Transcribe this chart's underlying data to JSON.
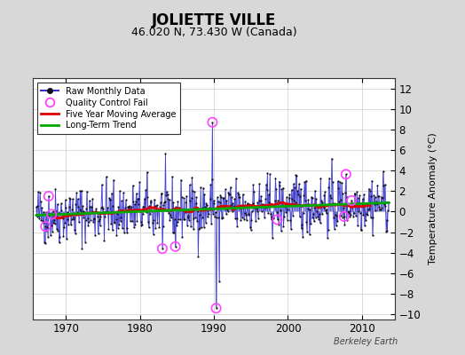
{
  "title": "JOLIETTE VILLE",
  "subtitle": "46.020 N, 73.430 W (Canada)",
  "ylabel": "Temperature Anomaly (°C)",
  "credit": "Berkeley Earth",
  "xlim": [
    1965.5,
    2014.5
  ],
  "ylim": [
    -10.5,
    13.0
  ],
  "yticks": [
    -10,
    -8,
    -6,
    -4,
    -2,
    0,
    2,
    4,
    6,
    8,
    10,
    12
  ],
  "xticks": [
    1970,
    1980,
    1990,
    2000,
    2010
  ],
  "raw_color": "#3333cc",
  "ma_color": "#dd0000",
  "trend_color": "#00aa00",
  "qc_color": "#ff44ff",
  "bg_color": "#d8d8d8",
  "plot_bg": "#ffffff",
  "title_fontsize": 12,
  "subtitle_fontsize": 9,
  "seed": 42,
  "start_year": 1966.0,
  "end_year": 2013.6
}
